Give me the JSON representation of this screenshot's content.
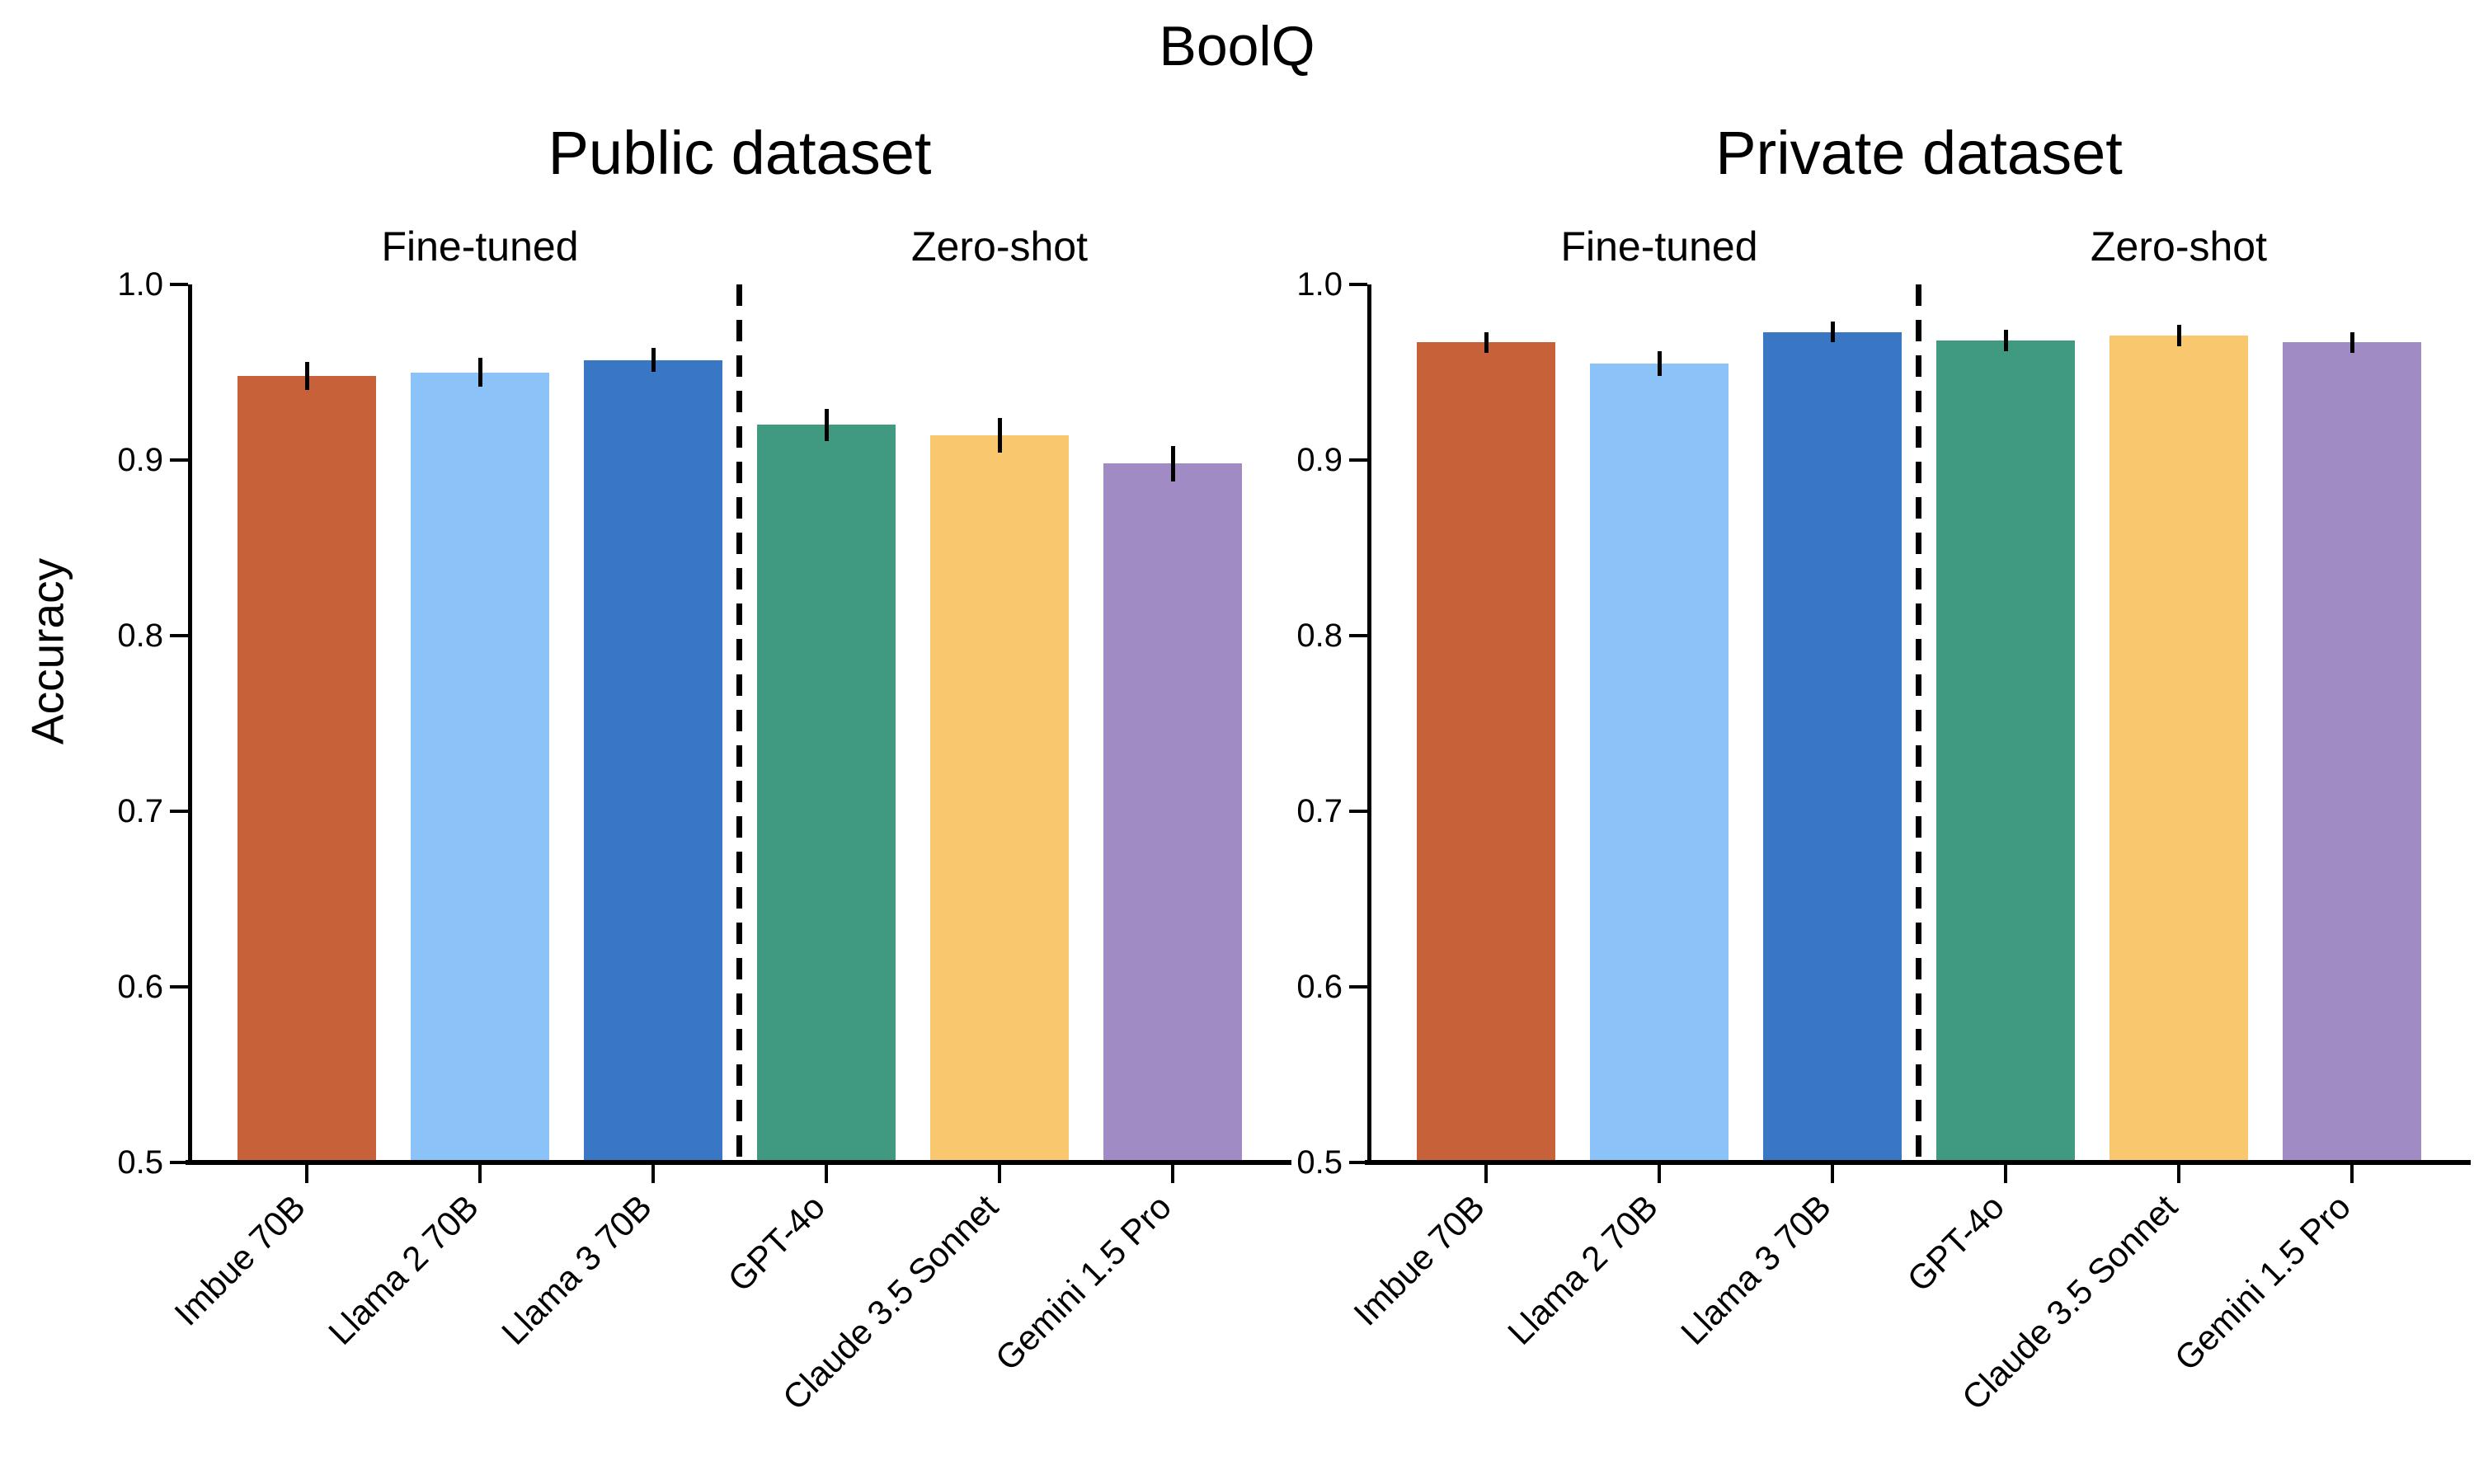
{
  "chart_data": {
    "type": "bar",
    "title": "BoolQ",
    "ylabel": "Accuracy",
    "xlabel": "",
    "ylim": [
      0.5,
      1.0
    ],
    "yticks": [
      1.0,
      0.9,
      0.8,
      0.7,
      0.6,
      0.5
    ],
    "ytick_labels": [
      "1.0",
      "0.9",
      "0.8",
      "0.7",
      "0.6",
      "0.5"
    ],
    "grid": false,
    "legend": null,
    "categories": [
      "Imbue 70B",
      "Llama 2 70B",
      "Llama 3 70B",
      "GPT-4o",
      "Claude 3.5 Sonnet",
      "Gemini 1.5 Pro"
    ],
    "groups": [
      "Fine-tuned",
      "Zero-shot"
    ],
    "group_membership": [
      0,
      0,
      0,
      1,
      1,
      1
    ],
    "bar_colors": [
      "#c6613a",
      "#8bc2f7",
      "#3976c4",
      "#409a82",
      "#f9c76d",
      "#a18bc5"
    ],
    "error_bar_color": "#000000",
    "divider_style": "dashed",
    "panels": [
      {
        "title": "Public dataset",
        "values": [
          0.948,
          0.95,
          0.957,
          0.92,
          0.914,
          0.898
        ],
        "errors": [
          0.008,
          0.008,
          0.007,
          0.009,
          0.01,
          0.01
        ]
      },
      {
        "title": "Private dataset",
        "values": [
          0.967,
          0.955,
          0.973,
          0.968,
          0.971,
          0.967
        ],
        "errors": [
          0.006,
          0.007,
          0.006,
          0.006,
          0.006,
          0.006
        ]
      }
    ]
  }
}
